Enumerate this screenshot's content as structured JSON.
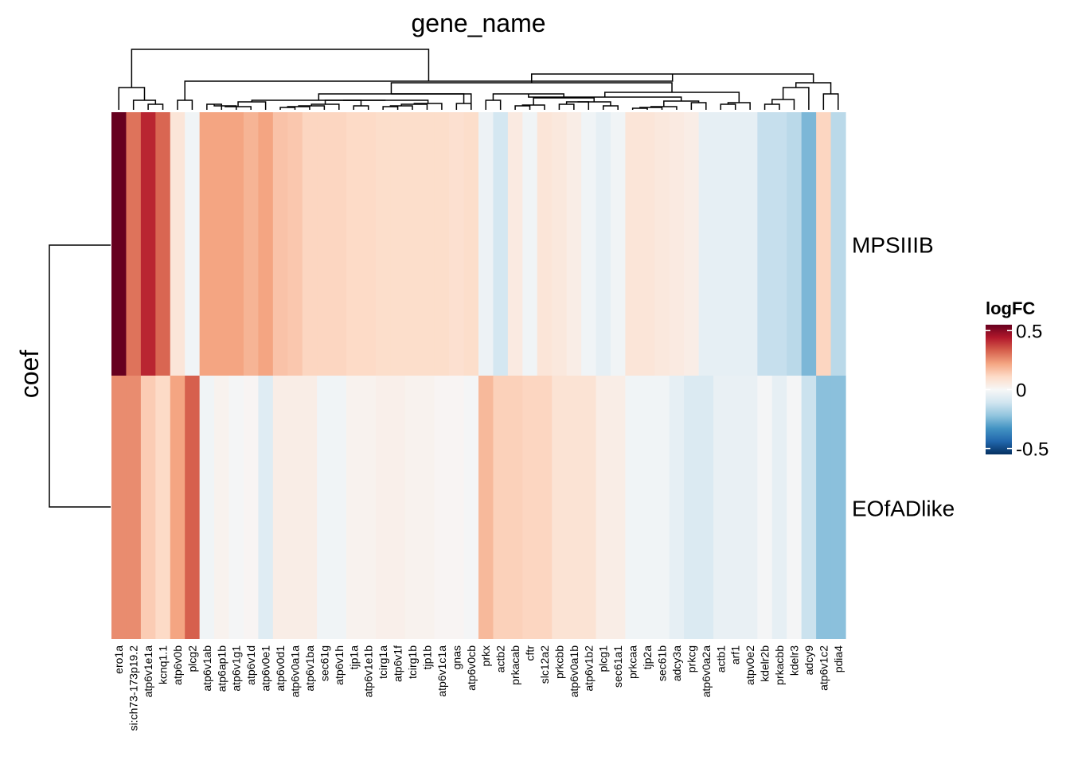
{
  "chart_data": {
    "type": "heatmap",
    "title": "gene_name",
    "row_title": "coef",
    "rows": [
      "MPSIIIB",
      "EOfADlike"
    ],
    "columns": [
      "ero1a",
      "si:ch73-173p19.2",
      "atp6v1e1a",
      "kcnq1.1",
      "atp6v0b",
      "plcg2",
      "atp6v1ab",
      "atp6ap1b",
      "atp6v1g1",
      "atp6v1d",
      "atp6v0e1",
      "atp6v0d1",
      "atp6v0a1a",
      "atp6v1ba",
      "sec61g",
      "atp6v1h",
      "tjp1a",
      "atp6v1e1b",
      "tcirg1a",
      "atp6v1f",
      "tcirg1b",
      "tjp1b",
      "atp6v1c1a",
      "gnas",
      "atp6v0cb",
      "prkx",
      "actb2",
      "prkacab",
      "cftr",
      "slc12a2",
      "prkcbb",
      "atp6v0a1b",
      "atp6v1b2",
      "plcg1",
      "sec61a1",
      "prkcaa",
      "tjp2a",
      "sec61b",
      "adcy3a",
      "prkcg",
      "atp6v0a2a",
      "actb1",
      "arf1",
      "atpv0e2",
      "kdelr2b",
      "prkacbb",
      "kdelr3",
      "adcy9",
      "atp6v1c2",
      "pdia4"
    ],
    "values": [
      [
        0.55,
        0.3,
        0.42,
        0.32,
        0.07,
        -0.02,
        0.22,
        0.22,
        0.22,
        0.19,
        0.22,
        0.16,
        0.15,
        0.12,
        0.12,
        0.12,
        0.11,
        0.11,
        0.1,
        0.1,
        0.1,
        0.1,
        0.1,
        0.09,
        0.1,
        -0.03,
        -0.1,
        0.05,
        -0.02,
        0.07,
        0.06,
        0.04,
        -0.02,
        -0.05,
        -0.02,
        0.07,
        0.07,
        0.06,
        0.05,
        0.04,
        -0.05,
        -0.05,
        -0.05,
        -0.05,
        -0.13,
        -0.13,
        -0.15,
        -0.25,
        0.12,
        -0.15
      ],
      [
        0.26,
        0.26,
        0.14,
        0.11,
        0.22,
        0.33,
        -0.02,
        0.02,
        -0.01,
        0.01,
        -0.07,
        0.04,
        0.04,
        0.04,
        -0.02,
        -0.02,
        0.02,
        0.02,
        0.03,
        0.03,
        0.02,
        0.02,
        0.01,
        0.01,
        -0.01,
        0.18,
        0.13,
        0.13,
        0.12,
        0.12,
        0.08,
        0.08,
        0.08,
        0.04,
        0.04,
        -0.02,
        -0.02,
        -0.02,
        -0.05,
        -0.08,
        -0.08,
        -0.04,
        -0.04,
        -0.04,
        -0.01,
        -0.05,
        -0.01,
        -0.12,
        -0.23,
        -0.23
      ]
    ],
    "legend": {
      "title": "logFC",
      "ticks": [
        0.5,
        0,
        -0.5
      ],
      "tick_labels": [
        "0.5",
        "0",
        "-0.5"
      ],
      "range": [
        -0.55,
        0.55
      ]
    },
    "palette": [
      "#053061",
      "#2166ac",
      "#4393c3",
      "#92c5de",
      "#d1e5f0",
      "#f7f7f7",
      "#fddbc7",
      "#f4a582",
      "#d6604d",
      "#b2182b",
      "#67001f"
    ]
  }
}
